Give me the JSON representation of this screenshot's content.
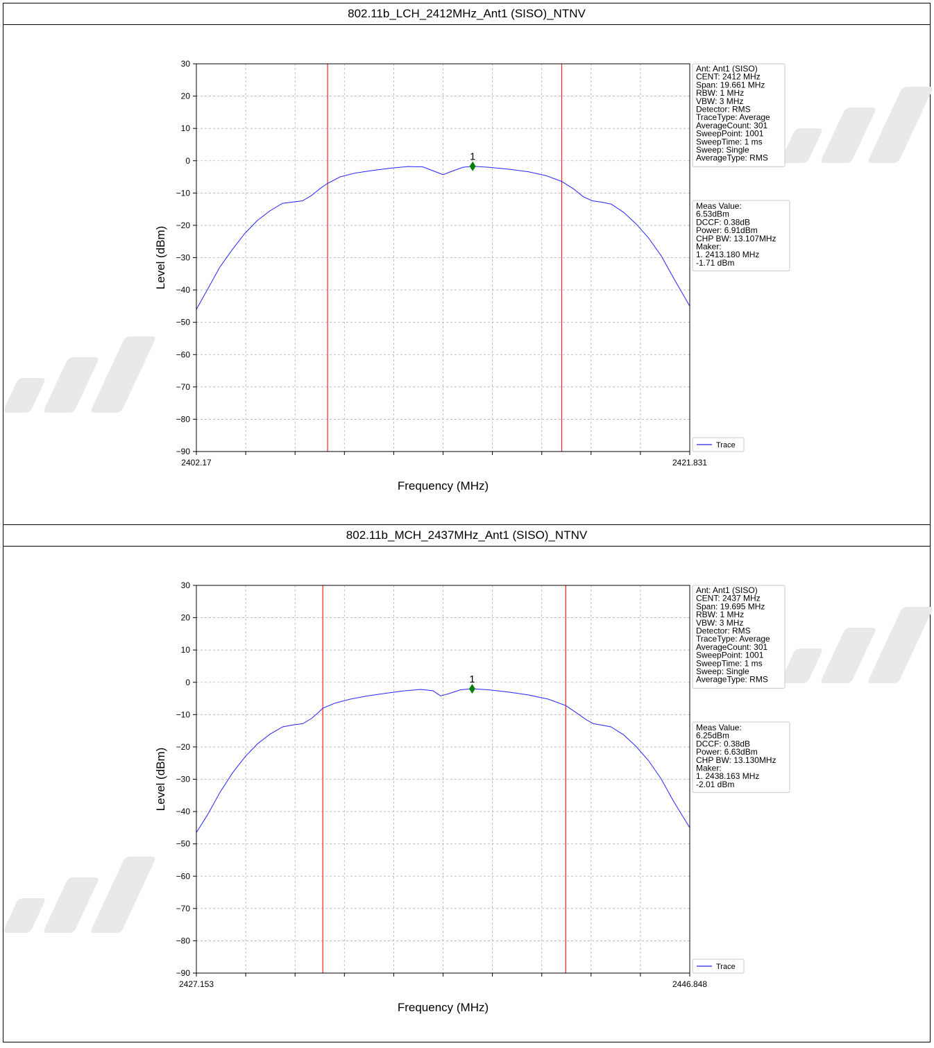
{
  "colors": {
    "trace": "#2323ff",
    "limit_line": "#ff2020",
    "marker": "#008000",
    "grid": "#b0b0b0"
  },
  "chart_data": [
    {
      "type": "line",
      "title": "802.11b_LCH_2412MHz_Ant1 (SISO)_NTNV",
      "xlabel": "Frequency (MHz)",
      "ylabel": "Level (dBm)",
      "xlim": [
        2402.17,
        2421.831
      ],
      "ylim": [
        -90,
        30
      ],
      "x_tick_labels": [
        "2402.17",
        "2421.831"
      ],
      "y_ticks": [
        30,
        20,
        10,
        0,
        -10,
        -20,
        -30,
        -40,
        -50,
        -60,
        -70,
        -80,
        -90
      ],
      "grid": true,
      "legend": {
        "position": "bottom-right-outside",
        "entries": [
          "Trace"
        ]
      },
      "limit_lines_x": [
        2407.4,
        2416.73
      ],
      "marker": {
        "label": "1",
        "x": 2413.18,
        "y": -1.71
      },
      "series": [
        {
          "name": "Trace",
          "x": [
            2402.17,
            2402.6,
            2403.1,
            2403.6,
            2404.1,
            2404.6,
            2405.1,
            2405.6,
            2406.0,
            2406.4,
            2406.75,
            2407.1,
            2407.4,
            2407.9,
            2408.5,
            2409.2,
            2409.9,
            2410.6,
            2411.2,
            2411.7,
            2412.0,
            2412.3,
            2412.8,
            2413.18,
            2413.8,
            2414.6,
            2415.4,
            2416.1,
            2416.73,
            2417.2,
            2417.6,
            2417.95,
            2418.3,
            2418.7,
            2419.2,
            2419.7,
            2420.2,
            2420.7,
            2421.2,
            2421.831
          ],
          "y": [
            -46,
            -40,
            -33,
            -27.5,
            -22.5,
            -18.5,
            -15.5,
            -13.2,
            -12.8,
            -12.4,
            -10.8,
            -8.6,
            -7.0,
            -5.0,
            -3.8,
            -3.0,
            -2.3,
            -1.8,
            -1.9,
            -3.4,
            -4.3,
            -3.4,
            -2.0,
            -1.71,
            -2.0,
            -2.6,
            -3.4,
            -4.6,
            -6.4,
            -8.7,
            -11.2,
            -12.4,
            -12.8,
            -13.4,
            -16.0,
            -19.6,
            -24.0,
            -29.5,
            -36.5,
            -45
          ]
        }
      ],
      "info_box": [
        "Ant: Ant1 (SISO)",
        "CENT: 2412 MHz",
        "Span: 19.661 MHz",
        "RBW: 1 MHz",
        "VBW: 3 MHz",
        "Detector: RMS",
        "TraceType: Average",
        "AverageCount: 301",
        "SweepPoint: 1001",
        "SweepTime: 1 ms",
        "Sweep: Single",
        "AverageType: RMS"
      ],
      "meas_box": [
        "Meas Value:",
        " 6.53dBm",
        "DCCF: 0.38dB",
        "Power: 6.91dBm",
        "CHP BW: 13.107MHz",
        "Maker:",
        "1. 2413.180 MHz",
        "   -1.71 dBm"
      ]
    },
    {
      "type": "line",
      "title": "802.11b_MCH_2437MHz_Ant1 (SISO)_NTNV",
      "xlabel": "Frequency (MHz)",
      "ylabel": "Level (dBm)",
      "xlim": [
        2427.153,
        2446.848
      ],
      "ylim": [
        -90,
        30
      ],
      "x_tick_labels": [
        "2427.153",
        "2446.848"
      ],
      "y_ticks": [
        30,
        20,
        10,
        0,
        -10,
        -20,
        -30,
        -40,
        -50,
        -60,
        -70,
        -80,
        -90
      ],
      "grid": true,
      "legend": {
        "position": "bottom-right-outside",
        "entries": [
          "Trace"
        ]
      },
      "limit_lines_x": [
        2432.2,
        2441.9
      ],
      "marker": {
        "label": "1",
        "x": 2438.163,
        "y": -2.01
      },
      "series": [
        {
          "name": "Trace",
          "x": [
            2427.153,
            2427.6,
            2428.1,
            2428.6,
            2429.1,
            2429.6,
            2430.1,
            2430.6,
            2431.0,
            2431.4,
            2431.75,
            2432.0,
            2432.2,
            2432.7,
            2433.3,
            2434.0,
            2434.7,
            2435.4,
            2436.1,
            2436.6,
            2436.9,
            2437.2,
            2437.7,
            2438.163,
            2438.8,
            2439.6,
            2440.4,
            2441.2,
            2441.9,
            2442.3,
            2442.7,
            2443.0,
            2443.3,
            2443.7,
            2444.2,
            2444.7,
            2445.2,
            2445.7,
            2446.2,
            2446.848
          ],
          "y": [
            -46.5,
            -41,
            -34,
            -28,
            -23,
            -19,
            -16,
            -13.8,
            -13.2,
            -12.8,
            -11.2,
            -9.5,
            -8.0,
            -6.4,
            -5.2,
            -4.2,
            -3.4,
            -2.7,
            -2.2,
            -2.6,
            -4.2,
            -3.6,
            -2.3,
            -2.01,
            -2.3,
            -3.0,
            -3.9,
            -5.2,
            -7.2,
            -9.3,
            -11.5,
            -12.8,
            -13.2,
            -13.8,
            -16.2,
            -19.8,
            -24.2,
            -29.8,
            -36.8,
            -45
          ]
        }
      ],
      "info_box": [
        "Ant: Ant1 (SISO)",
        "CENT: 2437 MHz",
        "Span: 19.695 MHz",
        "RBW: 1 MHz",
        "VBW: 3 MHz",
        "Detector: RMS",
        "TraceType: Average",
        "AverageCount: 301",
        "SweepPoint: 1001",
        "SweepTime: 1 ms",
        "Sweep: Single",
        "AverageType: RMS"
      ],
      "meas_box": [
        "Meas Value:",
        " 6.25dBm",
        "DCCF: 0.38dB",
        "Power: 6.63dBm",
        "CHP BW: 13.130MHz",
        "Maker:",
        "1. 2438.163 MHz",
        "   -2.01 dBm"
      ]
    }
  ]
}
